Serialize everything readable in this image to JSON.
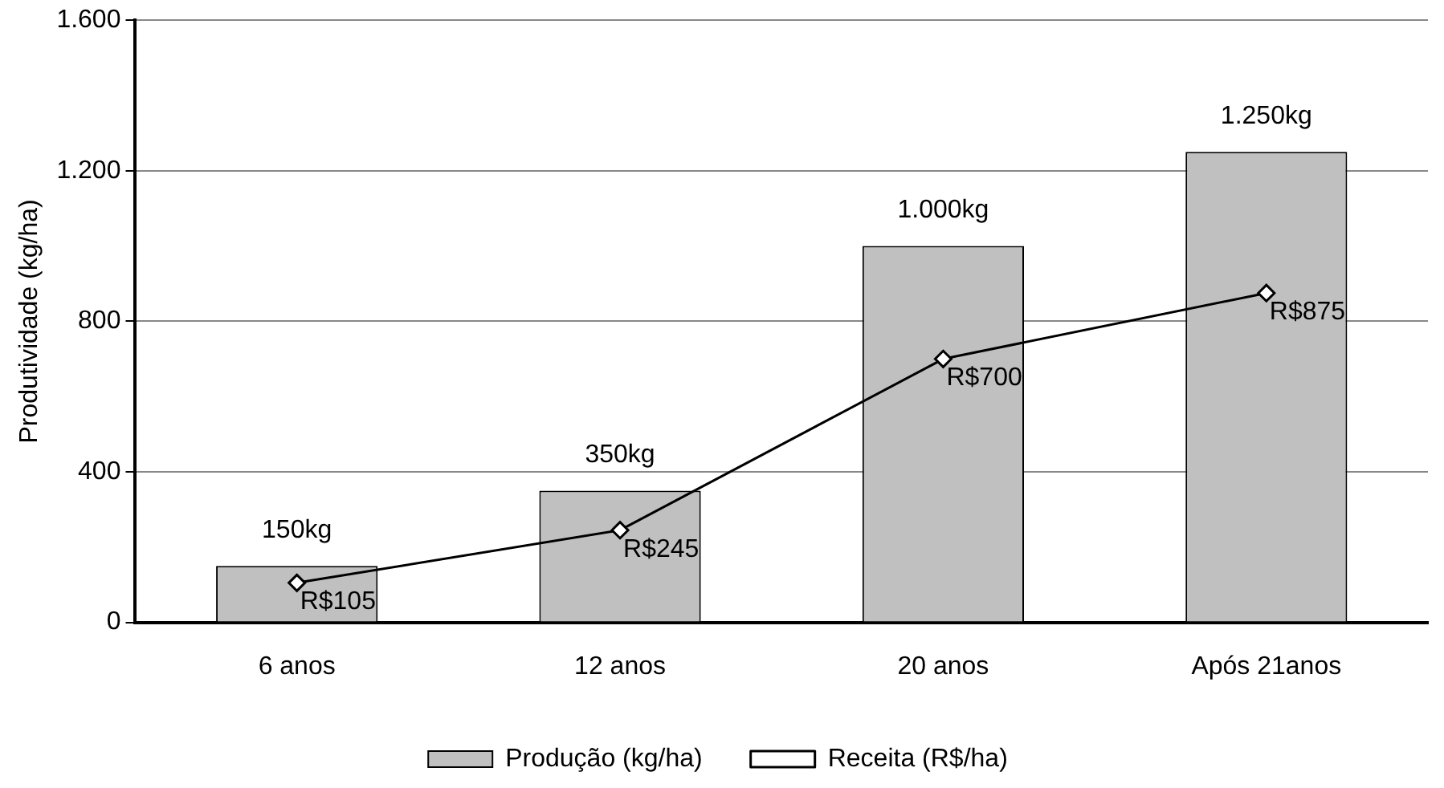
{
  "chart_data": {
    "type": "bar",
    "ylabel": "Produtividade (kg/ha)",
    "categories": [
      "6 anos",
      "12 anos",
      "20 anos",
      "Após 21anos"
    ],
    "series": [
      {
        "name": "Produção (kg/ha)",
        "color": "#c0c0c0",
        "values": [
          150,
          350,
          1000,
          1250
        ],
        "value_labels": [
          "150kg",
          "350kg",
          "1.000kg",
          "1.250kg"
        ]
      },
      {
        "name": "Receita (R$/ha)",
        "type": "line",
        "color": "#000000",
        "values": [
          105,
          245,
          700,
          875
        ],
        "value_labels": [
          "R$105",
          "R$245",
          "R$700",
          "R$875"
        ]
      }
    ],
    "ylim": [
      0,
      1600
    ],
    "yticks": [
      {
        "value": 0,
        "label": "0"
      },
      {
        "value": 400,
        "label": "400"
      },
      {
        "value": 800,
        "label": "800"
      },
      {
        "value": 1200,
        "label": "1.200"
      },
      {
        "value": 1600,
        "label": "1.600"
      }
    ],
    "grid": "y",
    "legend": "bottom",
    "marker": "diamond",
    "line_style": "solid"
  }
}
